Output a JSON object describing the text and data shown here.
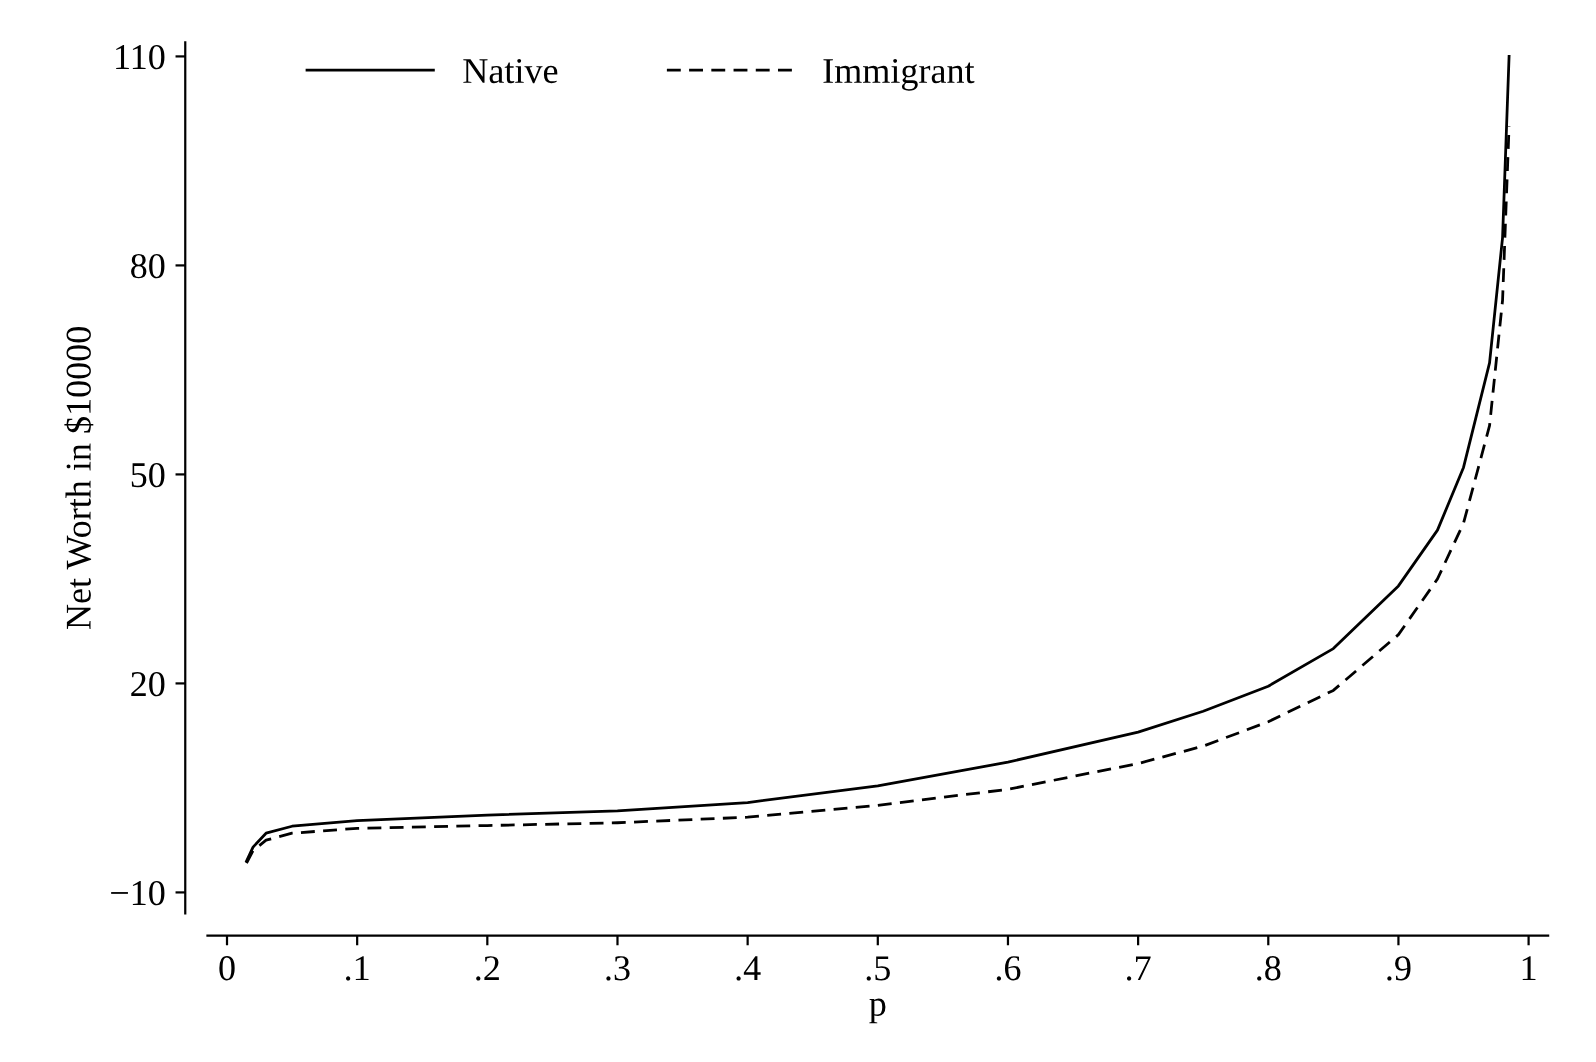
{
  "chart_data": {
    "type": "line",
    "xlabel": "p",
    "ylabel": "Net Worth in $10000",
    "x": [
      0.015,
      0.02,
      0.03,
      0.05,
      0.1,
      0.2,
      0.3,
      0.4,
      0.5,
      0.6,
      0.7,
      0.75,
      0.8,
      0.85,
      0.9,
      0.93,
      0.95,
      0.97,
      0.98,
      0.985
    ],
    "series": [
      {
        "name": "Native",
        "color": "#000000",
        "line_style": "solid",
        "values": [
          -5.5,
          -3.5,
          -1.5,
          -0.5,
          0.3,
          1.1,
          1.7,
          2.9,
          5.3,
          8.7,
          13,
          16,
          19.6,
          25,
          34,
          42,
          51,
          66,
          84,
          110
        ]
      },
      {
        "name": "Immigrant",
        "color": "#000000",
        "line_style": "dashed",
        "values": [
          -5.8,
          -4,
          -2.5,
          -1.5,
          -0.8,
          -0.4,
          0,
          0.8,
          2.5,
          4.8,
          8.5,
          11,
          14.5,
          19,
          27,
          35,
          43,
          57,
          75,
          100
        ]
      }
    ],
    "xlim": [
      -0.015,
      1.015
    ],
    "ylim": [
      -13,
      112
    ],
    "xticks": [
      0,
      {
        "value": 0.1,
        "label": ".1"
      },
      {
        "value": 0.2,
        "label": ".2"
      },
      {
        "value": 0.3,
        "label": ".3"
      },
      {
        "value": 0.4,
        "label": ".4"
      },
      {
        "value": 0.5,
        "label": ".5"
      },
      {
        "value": 0.6,
        "label": ".6"
      },
      {
        "value": 0.7,
        "label": ".7"
      },
      {
        "value": 0.8,
        "label": ".8"
      },
      {
        "value": 0.9,
        "label": ".9"
      },
      1
    ],
    "yticks": [
      {
        "value": -10,
        "label": "−10"
      },
      20,
      50,
      80,
      110
    ],
    "legend": "top left",
    "grid": false,
    "marker": "none"
  }
}
